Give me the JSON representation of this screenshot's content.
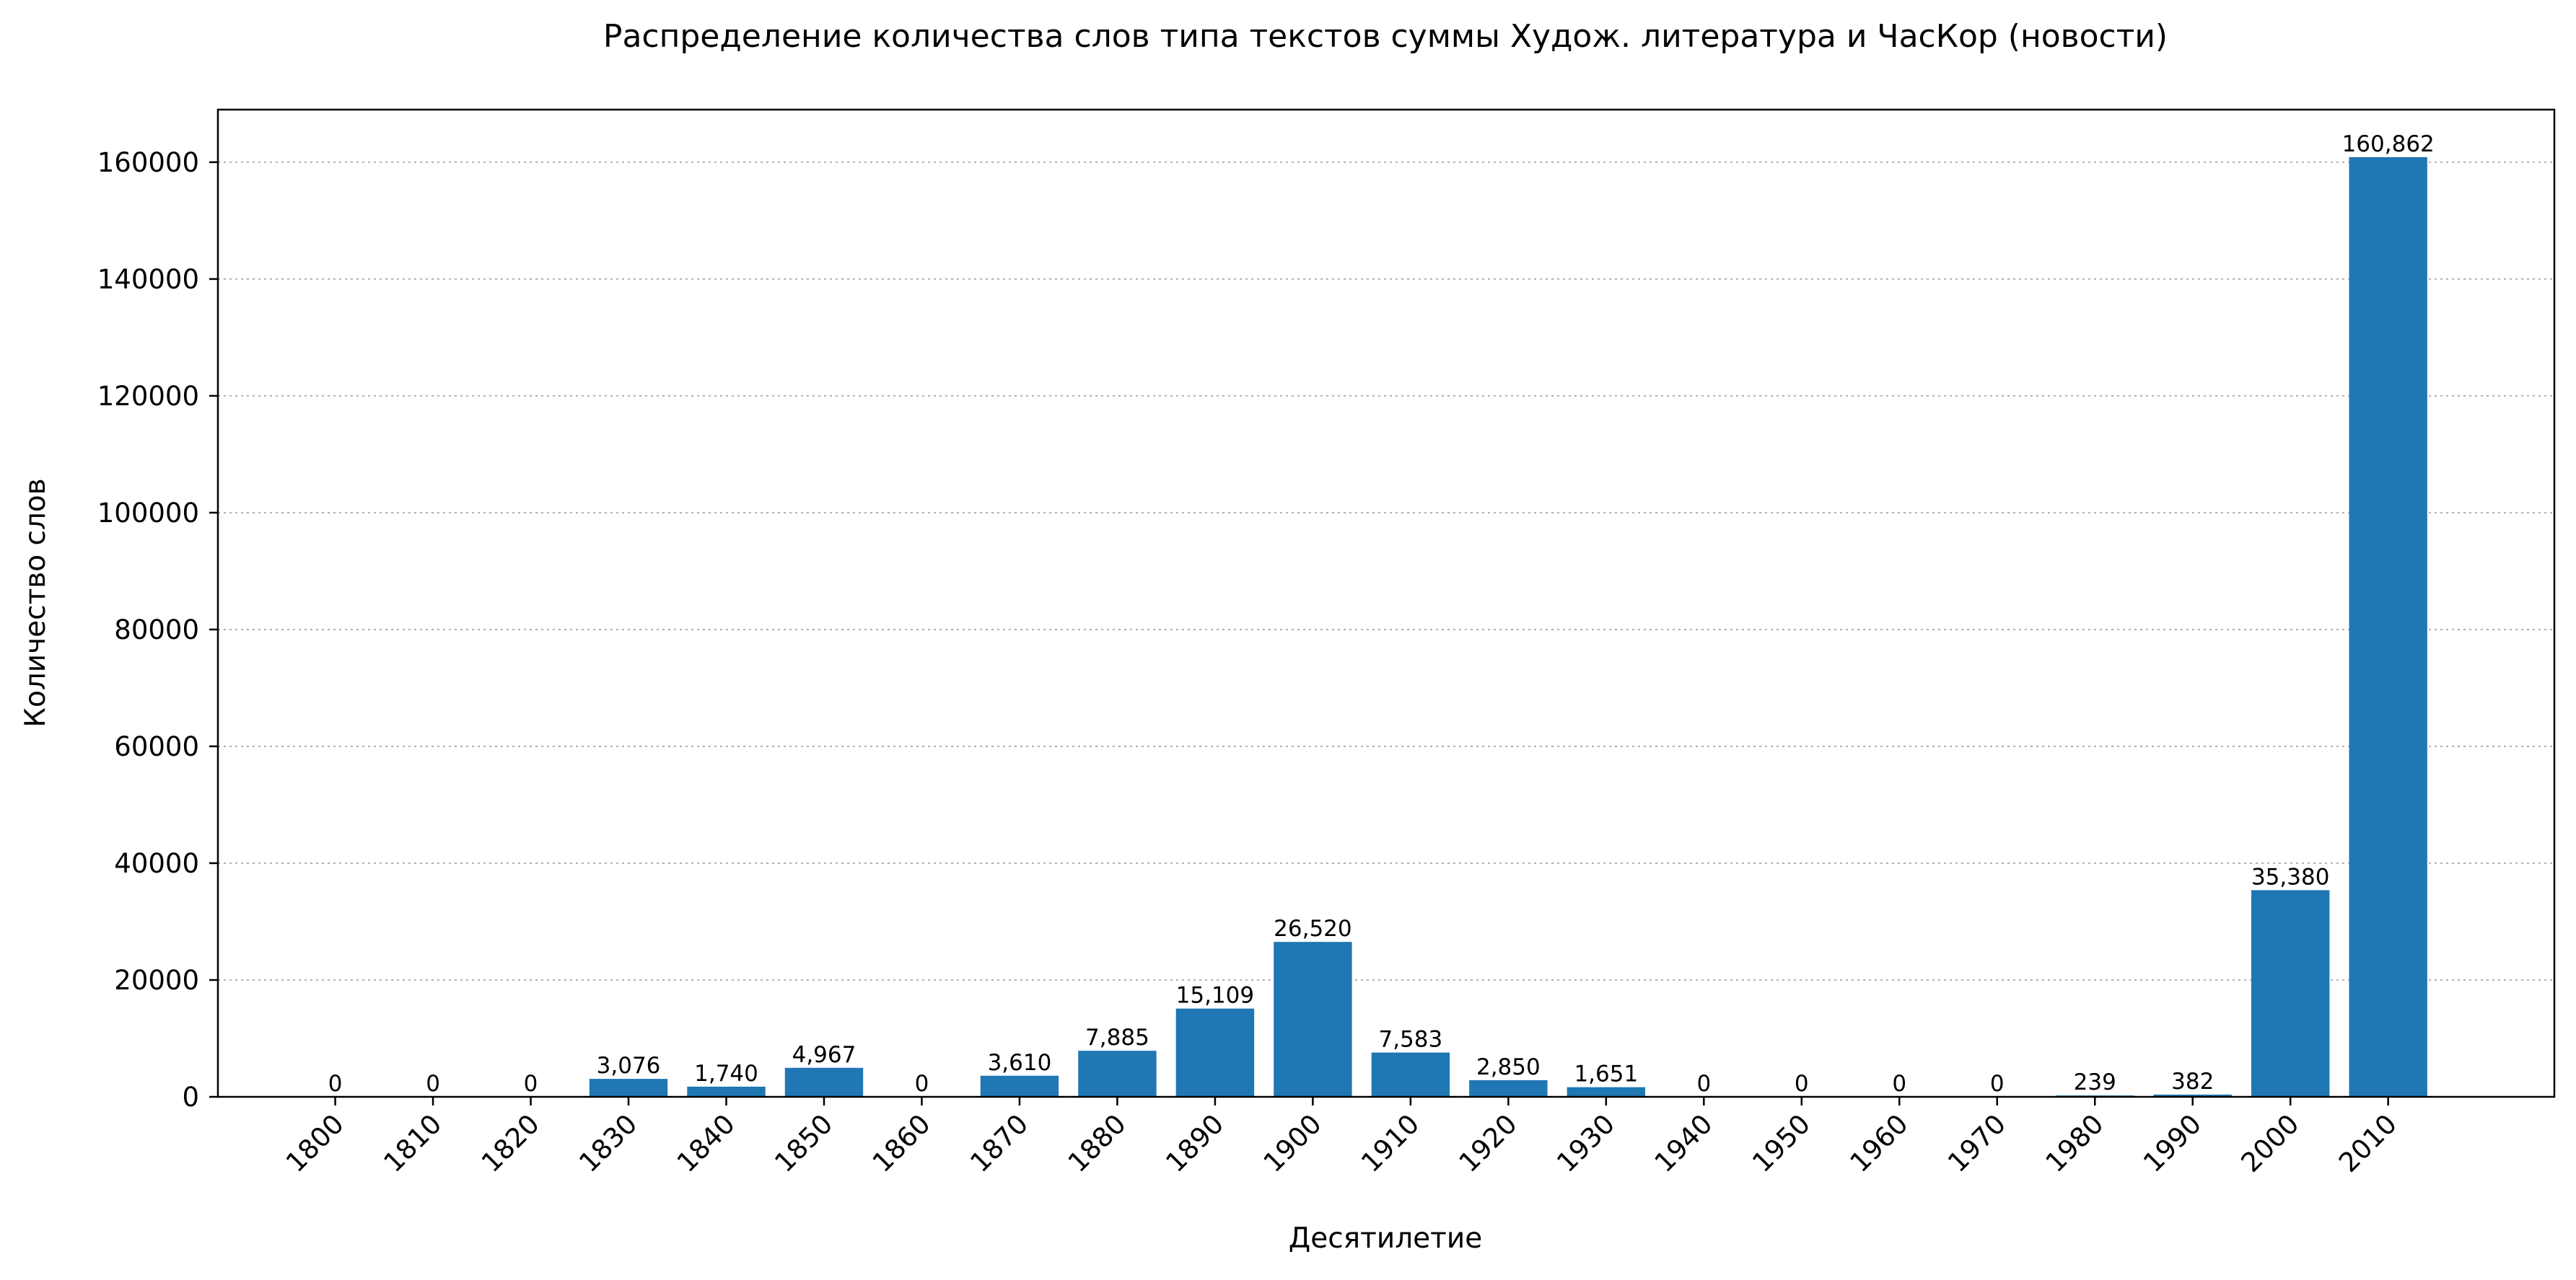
{
  "chart_data": {
    "type": "bar",
    "title": "Распределение количества слов типа текстов суммы Худож. литература и ЧасКор (новости)",
    "xlabel": "Десятилетие",
    "ylabel": "Количество слов",
    "categories": [
      "1800",
      "1810",
      "1820",
      "1830",
      "1840",
      "1850",
      "1860",
      "1870",
      "1880",
      "1890",
      "1900",
      "1910",
      "1920",
      "1930",
      "1940",
      "1950",
      "1960",
      "1970",
      "1980",
      "1990",
      "2000",
      "2010"
    ],
    "values": [
      0,
      0,
      0,
      3076,
      1740,
      4967,
      0,
      3610,
      7885,
      15109,
      26520,
      7583,
      2850,
      1651,
      0,
      0,
      0,
      0,
      239,
      382,
      35380,
      160862
    ],
    "value_labels": [
      "0",
      "0",
      "0",
      "3,076",
      "1,740",
      "4,967",
      "0",
      "3,610",
      "7,885",
      "15,109",
      "26,520",
      "7,583",
      "2,850",
      "1,651",
      "0",
      "0",
      "0",
      "0",
      "239",
      "382",
      "35,380",
      "160,862"
    ],
    "ylim": [
      0,
      169000
    ],
    "yticks": [
      0,
      20000,
      40000,
      60000,
      80000,
      100000,
      120000,
      140000,
      160000
    ],
    "ytick_labels": [
      "0",
      "20000",
      "40000",
      "60000",
      "80000",
      "100000",
      "120000",
      "140000",
      "160000"
    ],
    "grid": "y-dotted",
    "legend": "none",
    "bar_color": "#1f77b4"
  }
}
